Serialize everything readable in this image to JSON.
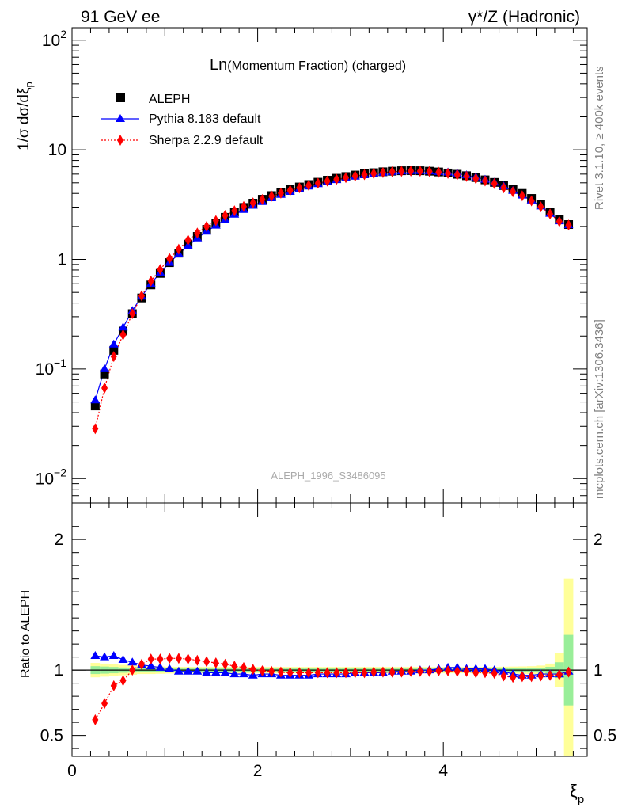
{
  "header": {
    "left": "91 GeV ee",
    "right": "γ*/Z (Hadronic)"
  },
  "title": {
    "main": "Ln",
    "sub": "(Momentum Fraction) (charged)"
  },
  "side": {
    "rivet": "Rivet 3.1.10, ≥ 400k events",
    "mcplots": "mcplots.cern.ch [arXiv:1306.3436]"
  },
  "watermark": "ALEPH_1996_S3486095",
  "legend": [
    {
      "label": "ALEPH",
      "color": "#000000",
      "marker": "square"
    },
    {
      "label": "Pythia 8.183 default",
      "color": "#0000ff",
      "marker": "triangle"
    },
    {
      "label": "Sherpa 2.2.9 default",
      "color": "#ff0000",
      "marker": "diamond"
    }
  ],
  "colors": {
    "band_outer": "#ffff99",
    "band_inner": "#99ee99"
  },
  "chart_data": [
    {
      "type": "scatter",
      "ylabel": "1/σ dσ/dξ",
      "ylabel_sub": "p",
      "scale": "log",
      "xlim": [
        0,
        5.55
      ],
      "ylim": [
        0.006,
        130
      ],
      "yticks": [
        {
          "v": 0.01,
          "base": "10",
          "exp": "−2"
        },
        {
          "v": 0.1,
          "base": "10",
          "exp": "−1"
        },
        {
          "v": 1,
          "base": "1",
          "exp": ""
        },
        {
          "v": 10,
          "base": "10",
          "exp": ""
        },
        {
          "v": 100,
          "base": "10",
          "exp": "2"
        }
      ],
      "x": [
        0.25,
        0.35,
        0.45,
        0.55,
        0.65,
        0.75,
        0.85,
        0.95,
        1.05,
        1.15,
        1.25,
        1.35,
        1.45,
        1.55,
        1.65,
        1.75,
        1.85,
        1.95,
        2.05,
        2.15,
        2.25,
        2.35,
        2.45,
        2.55,
        2.65,
        2.75,
        2.85,
        2.95,
        3.05,
        3.15,
        3.25,
        3.35,
        3.45,
        3.55,
        3.65,
        3.75,
        3.85,
        3.95,
        4.05,
        4.15,
        4.25,
        4.35,
        4.45,
        4.55,
        4.65,
        4.75,
        4.85,
        4.95,
        5.05,
        5.15,
        5.25,
        5.35
      ],
      "series": [
        {
          "name": "ALEPH",
          "values": [
            0.046,
            0.09,
            0.148,
            0.222,
            0.32,
            0.445,
            0.585,
            0.745,
            0.935,
            1.14,
            1.38,
            1.62,
            1.88,
            2.14,
            2.42,
            2.7,
            2.98,
            3.26,
            3.54,
            3.82,
            4.08,
            4.34,
            4.58,
            4.82,
            5.06,
            5.28,
            5.5,
            5.7,
            5.88,
            6.04,
            6.18,
            6.3,
            6.38,
            6.44,
            6.46,
            6.44,
            6.38,
            6.28,
            6.14,
            5.98,
            5.8,
            5.58,
            5.32,
            5.04,
            4.72,
            4.38,
            4.0,
            3.6,
            3.16,
            2.7,
            2.3,
            2.08
          ]
        },
        {
          "name": "Pythia 8.183 default",
          "values": [
            0.052,
            0.1,
            0.168,
            0.24,
            0.34,
            0.46,
            0.6,
            0.755,
            0.935,
            1.12,
            1.33,
            1.56,
            1.8,
            2.04,
            2.3,
            2.57,
            2.84,
            3.1,
            3.36,
            3.63,
            3.9,
            4.15,
            4.4,
            4.64,
            4.88,
            5.1,
            5.32,
            5.52,
            5.72,
            5.9,
            6.06,
            6.2,
            6.3,
            6.38,
            6.42,
            6.42,
            6.38,
            6.3,
            6.24,
            6.08,
            5.88,
            5.64,
            5.36,
            5.04,
            4.66,
            4.24,
            3.84,
            3.46,
            3.06,
            2.62,
            2.24,
            2.06
          ]
        },
        {
          "name": "Sherpa 2.2.9 default",
          "values": [
            0.0285,
            0.067,
            0.13,
            0.205,
            0.32,
            0.465,
            0.635,
            0.81,
            1.02,
            1.24,
            1.5,
            1.74,
            2.0,
            2.26,
            2.52,
            2.78,
            3.04,
            3.28,
            3.52,
            3.78,
            4.02,
            4.26,
            4.5,
            4.74,
            4.96,
            5.18,
            5.38,
            5.58,
            5.76,
            5.94,
            6.08,
            6.2,
            6.3,
            6.36,
            6.4,
            6.38,
            6.34,
            6.24,
            6.1,
            5.92,
            5.72,
            5.46,
            5.2,
            4.92,
            4.5,
            4.14,
            3.8,
            3.42,
            3.02,
            2.6,
            2.22,
            2.06
          ]
        }
      ]
    },
    {
      "type": "scatter",
      "ylabel": "Ratio to ALEPH",
      "xlabel": "ξ",
      "xlabel_sub": "p",
      "xlim": [
        0,
        5.55
      ],
      "ylim": [
        0.34,
        2.28
      ],
      "yticks": [
        0.5,
        1,
        2
      ],
      "xticks": [
        0,
        2,
        4
      ],
      "band_outer": [
        0.055,
        0.05,
        0.045,
        0.04,
        0.035,
        0.03,
        0.03,
        0.028,
        0.026,
        0.025,
        0.025,
        0.025,
        0.024,
        0.024,
        0.024,
        0.024,
        0.024,
        0.024,
        0.024,
        0.024,
        0.024,
        0.024,
        0.024,
        0.024,
        0.024,
        0.024,
        0.024,
        0.024,
        0.024,
        0.024,
        0.024,
        0.024,
        0.024,
        0.024,
        0.024,
        0.024,
        0.024,
        0.024,
        0.024,
        0.024,
        0.024,
        0.025,
        0.025,
        0.025,
        0.026,
        0.027,
        0.028,
        0.03,
        0.035,
        0.05,
        0.13,
        0.7
      ],
      "band_inner": [
        0.03,
        0.027,
        0.024,
        0.02,
        0.018,
        0.016,
        0.015,
        0.014,
        0.013,
        0.012,
        0.012,
        0.012,
        0.012,
        0.012,
        0.012,
        0.012,
        0.012,
        0.012,
        0.012,
        0.012,
        0.012,
        0.012,
        0.012,
        0.012,
        0.012,
        0.012,
        0.012,
        0.012,
        0.012,
        0.012,
        0.012,
        0.012,
        0.012,
        0.012,
        0.012,
        0.012,
        0.012,
        0.012,
        0.012,
        0.012,
        0.012,
        0.012,
        0.012,
        0.012,
        0.013,
        0.013,
        0.014,
        0.015,
        0.018,
        0.025,
        0.06,
        0.27
      ],
      "series": [
        {
          "name": "Pythia 8.183 default",
          "values": [
            1.11,
            1.1,
            1.11,
            1.08,
            1.06,
            1.04,
            1.03,
            1.02,
            1.01,
            0.99,
            0.99,
            0.99,
            0.98,
            0.98,
            0.98,
            0.97,
            0.97,
            0.96,
            0.97,
            0.97,
            0.96,
            0.96,
            0.96,
            0.96,
            0.97,
            0.97,
            0.97,
            0.97,
            0.98,
            0.98,
            0.98,
            0.98,
            0.99,
            0.99,
            0.99,
            1.0,
            1.0,
            1.01,
            1.02,
            1.02,
            1.01,
            1.01,
            1.01,
            1.0,
            0.99,
            0.97,
            0.96,
            0.96,
            0.97,
            0.97,
            0.97,
            0.99
          ]
        },
        {
          "name": "Sherpa 2.2.9 default",
          "values": [
            0.62,
            0.745,
            0.88,
            0.92,
            1.0,
            1.045,
            1.085,
            1.085,
            1.09,
            1.09,
            1.085,
            1.075,
            1.065,
            1.055,
            1.045,
            1.03,
            1.02,
            1.005,
            0.995,
            0.99,
            0.985,
            0.98,
            0.98,
            0.98,
            0.98,
            0.98,
            0.98,
            0.98,
            0.98,
            0.98,
            0.985,
            0.985,
            0.985,
            0.985,
            0.99,
            0.99,
            0.99,
            0.995,
            0.995,
            0.99,
            0.99,
            0.98,
            0.98,
            0.975,
            0.955,
            0.945,
            0.95,
            0.95,
            0.955,
            0.96,
            0.965,
            0.985
          ]
        }
      ]
    }
  ]
}
